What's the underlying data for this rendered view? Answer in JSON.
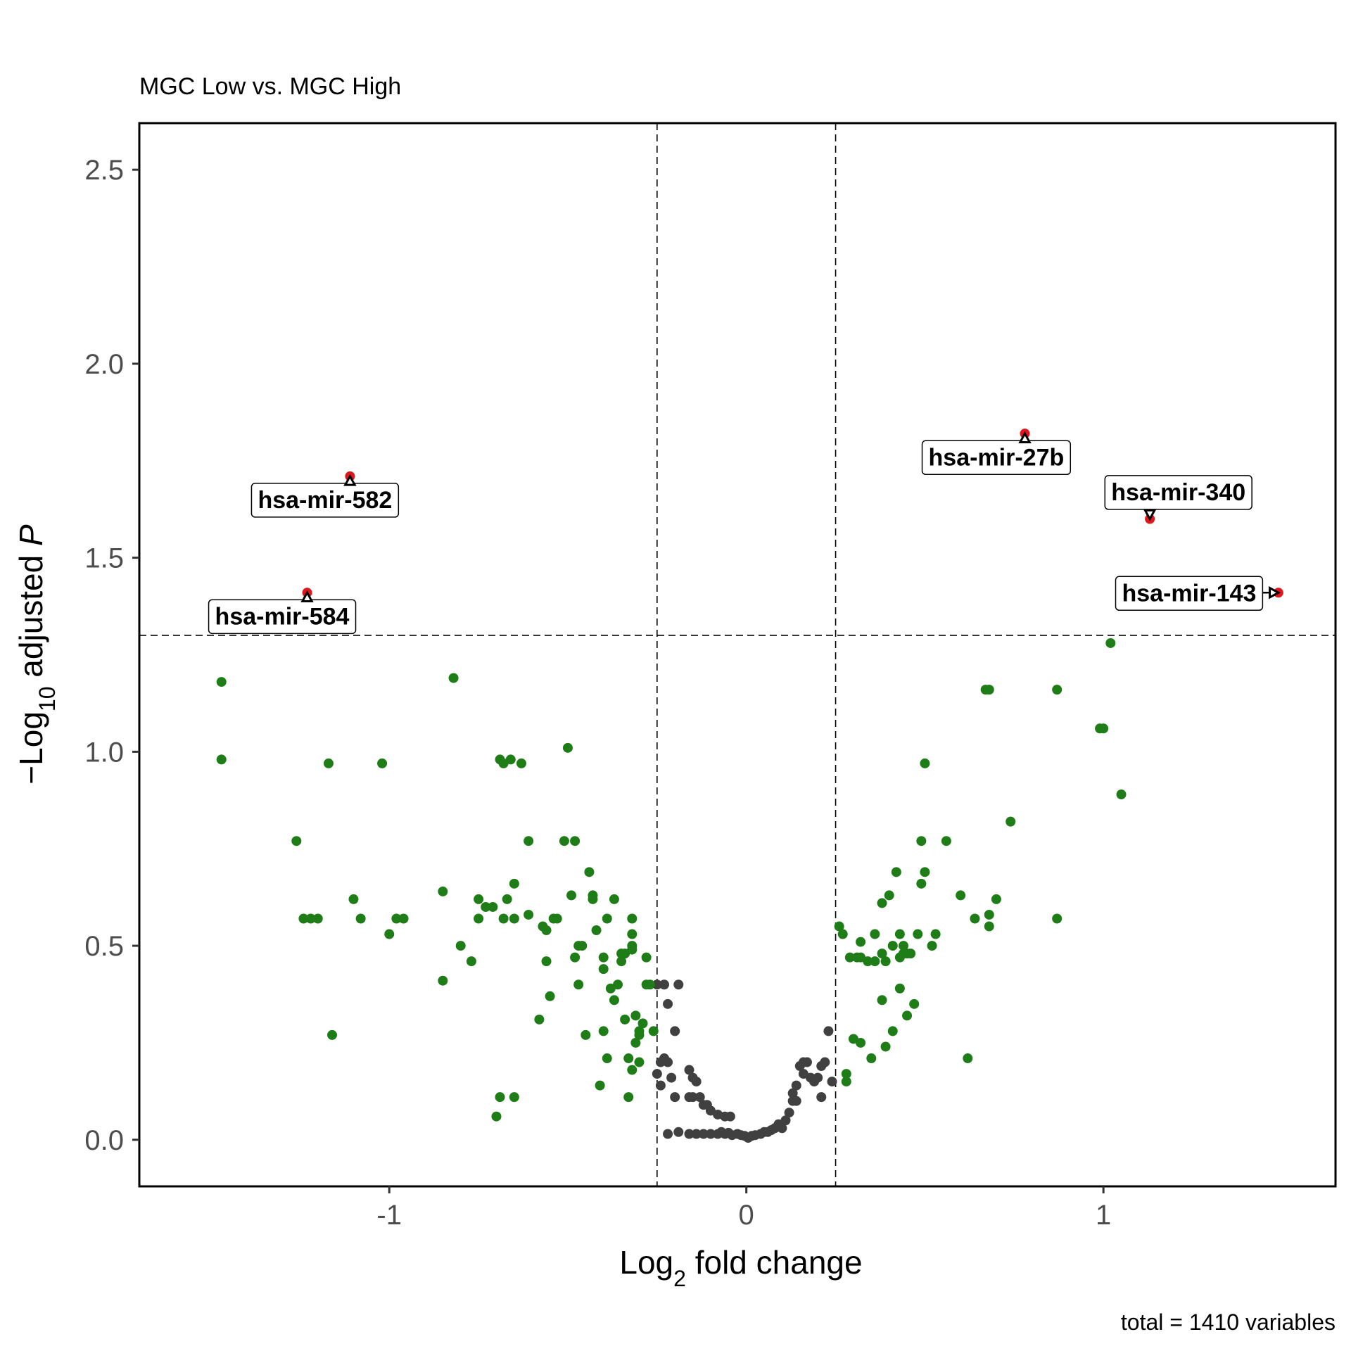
{
  "chart_data": {
    "type": "scatter",
    "subtitle": "MGC Low vs. MGC High",
    "xlabel": {
      "main": "Log",
      "sub": "2",
      "rest": " fold change"
    },
    "ylabel": {
      "prefix": "−Log",
      "sub": "10",
      "mid": " adjusted ",
      "italic": "P"
    },
    "caption": "total = 1410 variables",
    "xlim": [
      -1.7,
      1.65
    ],
    "ylim": [
      -0.12,
      2.62
    ],
    "x_ticks": [
      {
        "value": -1,
        "label": "-1"
      },
      {
        "value": 0,
        "label": "0"
      },
      {
        "value": 1,
        "label": "1"
      }
    ],
    "y_ticks": [
      {
        "value": 0,
        "label": "0.0"
      },
      {
        "value": 0.5,
        "label": "0.5"
      },
      {
        "value": 1,
        "label": "1.0"
      },
      {
        "value": 1.5,
        "label": "1.5"
      },
      {
        "value": 2,
        "label": "2.0"
      },
      {
        "value": 2.5,
        "label": "2.5"
      }
    ],
    "grid": false,
    "cutoffs": {
      "fc": [
        -0.25,
        0.25
      ],
      "p": 1.3
    },
    "colors": {
      "ns": "#404040",
      "fc": "#1e7d16",
      "sig": "#e0161b"
    },
    "series": [
      {
        "group": "ns",
        "points": [
          [
            -0.005,
            0.01
          ],
          [
            0.005,
            0.005
          ],
          [
            -0.015,
            0.012
          ],
          [
            0.015,
            0.01
          ],
          [
            -0.025,
            0.015
          ],
          [
            0.025,
            0.012
          ],
          [
            -0.04,
            0.012
          ],
          [
            0.04,
            0.015
          ],
          [
            -0.05,
            0.018
          ],
          [
            0.05,
            0.02
          ],
          [
            -0.06,
            0.015
          ],
          [
            0.06,
            0.02
          ],
          [
            -0.07,
            0.02
          ],
          [
            0.07,
            0.025
          ],
          [
            -0.08,
            0.015
          ],
          [
            0.08,
            0.03
          ],
          [
            -0.1,
            0.015
          ],
          [
            0.09,
            0.04
          ],
          [
            -0.12,
            0.015
          ],
          [
            -0.14,
            0.015
          ],
          [
            -0.16,
            0.015
          ],
          [
            -0.19,
            0.02
          ],
          [
            -0.22,
            0.015
          ],
          [
            -0.045,
            0.06
          ],
          [
            -0.06,
            0.06
          ],
          [
            -0.08,
            0.065
          ],
          [
            -0.1,
            0.075
          ],
          [
            -0.11,
            0.09
          ],
          [
            -0.12,
            0.09
          ],
          [
            -0.13,
            0.11
          ],
          [
            -0.15,
            0.11
          ],
          [
            -0.16,
            0.11
          ],
          [
            -0.2,
            0.11
          ],
          [
            -0.14,
            0.15
          ],
          [
            -0.15,
            0.16
          ],
          [
            -0.16,
            0.18
          ],
          [
            -0.21,
            0.16
          ],
          [
            -0.22,
            0.2
          ],
          [
            -0.24,
            0.2
          ],
          [
            -0.25,
            0.17
          ],
          [
            -0.24,
            0.14
          ],
          [
            -0.23,
            0.21
          ],
          [
            -0.2,
            0.28
          ],
          [
            -0.22,
            0.35
          ],
          [
            -0.23,
            0.4
          ],
          [
            -0.19,
            0.4
          ],
          [
            -0.25,
            0.4
          ],
          [
            0.1,
            0.03
          ],
          [
            0.11,
            0.05
          ],
          [
            0.12,
            0.07
          ],
          [
            0.13,
            0.1
          ],
          [
            0.13,
            0.12
          ],
          [
            0.14,
            0.1
          ],
          [
            0.14,
            0.14
          ],
          [
            0.15,
            0.19
          ],
          [
            0.16,
            0.2
          ],
          [
            0.16,
            0.17
          ],
          [
            0.17,
            0.2
          ],
          [
            0.18,
            0.16
          ],
          [
            0.19,
            0.15
          ],
          [
            0.2,
            0.16
          ],
          [
            0.21,
            0.19
          ],
          [
            0.21,
            0.11
          ],
          [
            0.22,
            0.2
          ],
          [
            0.23,
            0.28
          ],
          [
            0.24,
            0.15
          ]
        ]
      },
      {
        "group": "fc",
        "points": [
          [
            -1.47,
            1.18
          ],
          [
            -1.47,
            0.98
          ],
          [
            -1.26,
            0.77
          ],
          [
            -1.24,
            0.57
          ],
          [
            -1.22,
            0.57
          ],
          [
            -1.2,
            0.57
          ],
          [
            -1.17,
            0.97
          ],
          [
            -1.16,
            0.27
          ],
          [
            -1.1,
            0.62
          ],
          [
            -1.08,
            0.57
          ],
          [
            -1.02,
            0.97
          ],
          [
            -1.0,
            0.53
          ],
          [
            -0.98,
            0.57
          ],
          [
            -0.96,
            0.57
          ],
          [
            -0.85,
            0.64
          ],
          [
            -0.85,
            0.41
          ],
          [
            -0.82,
            1.19
          ],
          [
            -0.8,
            0.5
          ],
          [
            -0.77,
            0.46
          ],
          [
            -0.75,
            0.62
          ],
          [
            -0.75,
            0.57
          ],
          [
            -0.73,
            0.6
          ],
          [
            -0.71,
            0.6
          ],
          [
            -0.69,
            0.98
          ],
          [
            -0.68,
            0.97
          ],
          [
            -0.68,
            0.57
          ],
          [
            -0.67,
            0.62
          ],
          [
            -0.66,
            0.98
          ],
          [
            -0.65,
            0.66
          ],
          [
            -0.65,
            0.57
          ],
          [
            -0.63,
            0.97
          ],
          [
            -0.61,
            0.77
          ],
          [
            -0.61,
            0.58
          ],
          [
            -0.58,
            0.31
          ],
          [
            -0.57,
            0.55
          ],
          [
            -0.56,
            0.46
          ],
          [
            -0.56,
            0.54
          ],
          [
            -0.55,
            0.37
          ],
          [
            -0.54,
            0.57
          ],
          [
            -0.53,
            0.57
          ],
          [
            -0.51,
            0.77
          ],
          [
            -0.5,
            1.01
          ],
          [
            -0.49,
            0.63
          ],
          [
            -0.48,
            0.77
          ],
          [
            -0.48,
            0.47
          ],
          [
            -0.47,
            0.5
          ],
          [
            -0.47,
            0.4
          ],
          [
            -0.46,
            0.5
          ],
          [
            -0.45,
            0.27
          ],
          [
            -0.44,
            0.69
          ],
          [
            -0.43,
            0.62
          ],
          [
            -0.43,
            0.63
          ],
          [
            -0.42,
            0.54
          ],
          [
            -0.41,
            0.14
          ],
          [
            -0.4,
            0.44
          ],
          [
            -0.4,
            0.47
          ],
          [
            -0.4,
            0.28
          ],
          [
            -0.39,
            0.21
          ],
          [
            -0.39,
            0.57
          ],
          [
            -0.38,
            0.39
          ],
          [
            -0.37,
            0.36
          ],
          [
            -0.37,
            0.62
          ],
          [
            -0.36,
            0.4
          ],
          [
            -0.35,
            0.48
          ],
          [
            -0.35,
            0.46
          ],
          [
            -0.34,
            0.48
          ],
          [
            -0.34,
            0.31
          ],
          [
            -0.33,
            0.11
          ],
          [
            -0.33,
            0.21
          ],
          [
            -0.32,
            0.57
          ],
          [
            -0.32,
            0.53
          ],
          [
            -0.32,
            0.5
          ],
          [
            -0.32,
            0.49
          ],
          [
            -0.32,
            0.18
          ],
          [
            -0.31,
            0.32
          ],
          [
            -0.31,
            0.25
          ],
          [
            -0.3,
            0.28
          ],
          [
            -0.3,
            0.27
          ],
          [
            -0.3,
            0.2
          ],
          [
            -0.29,
            0.3
          ],
          [
            -0.28,
            0.47
          ],
          [
            -0.28,
            0.4
          ],
          [
            -0.27,
            0.4
          ],
          [
            -0.26,
            0.28
          ],
          [
            -0.7,
            0.06
          ],
          [
            -0.69,
            0.11
          ],
          [
            -0.65,
            0.11
          ],
          [
            0.26,
            0.55
          ],
          [
            0.27,
            0.53
          ],
          [
            0.28,
            0.15
          ],
          [
            0.28,
            0.17
          ],
          [
            0.29,
            0.47
          ],
          [
            0.3,
            0.26
          ],
          [
            0.31,
            0.47
          ],
          [
            0.32,
            0.25
          ],
          [
            0.32,
            0.51
          ],
          [
            0.32,
            0.47
          ],
          [
            0.34,
            0.46
          ],
          [
            0.35,
            0.21
          ],
          [
            0.36,
            0.46
          ],
          [
            0.36,
            0.53
          ],
          [
            0.38,
            0.36
          ],
          [
            0.38,
            0.61
          ],
          [
            0.38,
            0.48
          ],
          [
            0.39,
            0.24
          ],
          [
            0.39,
            0.46
          ],
          [
            0.4,
            0.63
          ],
          [
            0.41,
            0.28
          ],
          [
            0.41,
            0.5
          ],
          [
            0.42,
            0.69
          ],
          [
            0.43,
            0.47
          ],
          [
            0.43,
            0.53
          ],
          [
            0.43,
            0.39
          ],
          [
            0.44,
            0.48
          ],
          [
            0.44,
            0.5
          ],
          [
            0.45,
            0.48
          ],
          [
            0.45,
            0.32
          ],
          [
            0.46,
            0.48
          ],
          [
            0.47,
            0.35
          ],
          [
            0.48,
            0.53
          ],
          [
            0.49,
            0.66
          ],
          [
            0.49,
            0.77
          ],
          [
            0.5,
            0.69
          ],
          [
            0.5,
            0.97
          ],
          [
            0.52,
            0.5
          ],
          [
            0.53,
            0.53
          ],
          [
            0.56,
            0.77
          ],
          [
            0.6,
            0.63
          ],
          [
            0.62,
            0.21
          ],
          [
            0.64,
            0.57
          ],
          [
            0.67,
            1.16
          ],
          [
            0.68,
            1.16
          ],
          [
            0.68,
            0.58
          ],
          [
            0.68,
            0.55
          ],
          [
            0.7,
            0.62
          ],
          [
            0.74,
            0.82
          ],
          [
            0.87,
            1.16
          ],
          [
            0.87,
            0.57
          ],
          [
            0.99,
            1.06
          ],
          [
            1.0,
            1.06
          ],
          [
            1.02,
            1.28
          ],
          [
            1.05,
            0.89
          ]
        ]
      },
      {
        "group": "sig",
        "points": [
          [
            -1.11,
            1.71
          ],
          [
            -1.23,
            1.41
          ],
          [
            0.78,
            1.82
          ],
          [
            1.13,
            1.6
          ],
          [
            1.49,
            1.41
          ]
        ]
      }
    ],
    "labels": [
      {
        "text": "hsa-mir-582",
        "x": -1.11,
        "y": 1.71,
        "lx": -1.18,
        "ly": 1.65
      },
      {
        "text": "hsa-mir-584",
        "x": -1.23,
        "y": 1.41,
        "lx": -1.3,
        "ly": 1.35
      },
      {
        "text": "hsa-mir-27b",
        "x": 0.78,
        "y": 1.82,
        "lx": 0.7,
        "ly": 1.76
      },
      {
        "text": "hsa-mir-340",
        "x": 1.13,
        "y": 1.6,
        "lx": 1.21,
        "ly": 1.67
      },
      {
        "text": "hsa-mir-143",
        "x": 1.49,
        "y": 1.41,
        "lx": 1.24,
        "ly": 1.41
      }
    ]
  }
}
